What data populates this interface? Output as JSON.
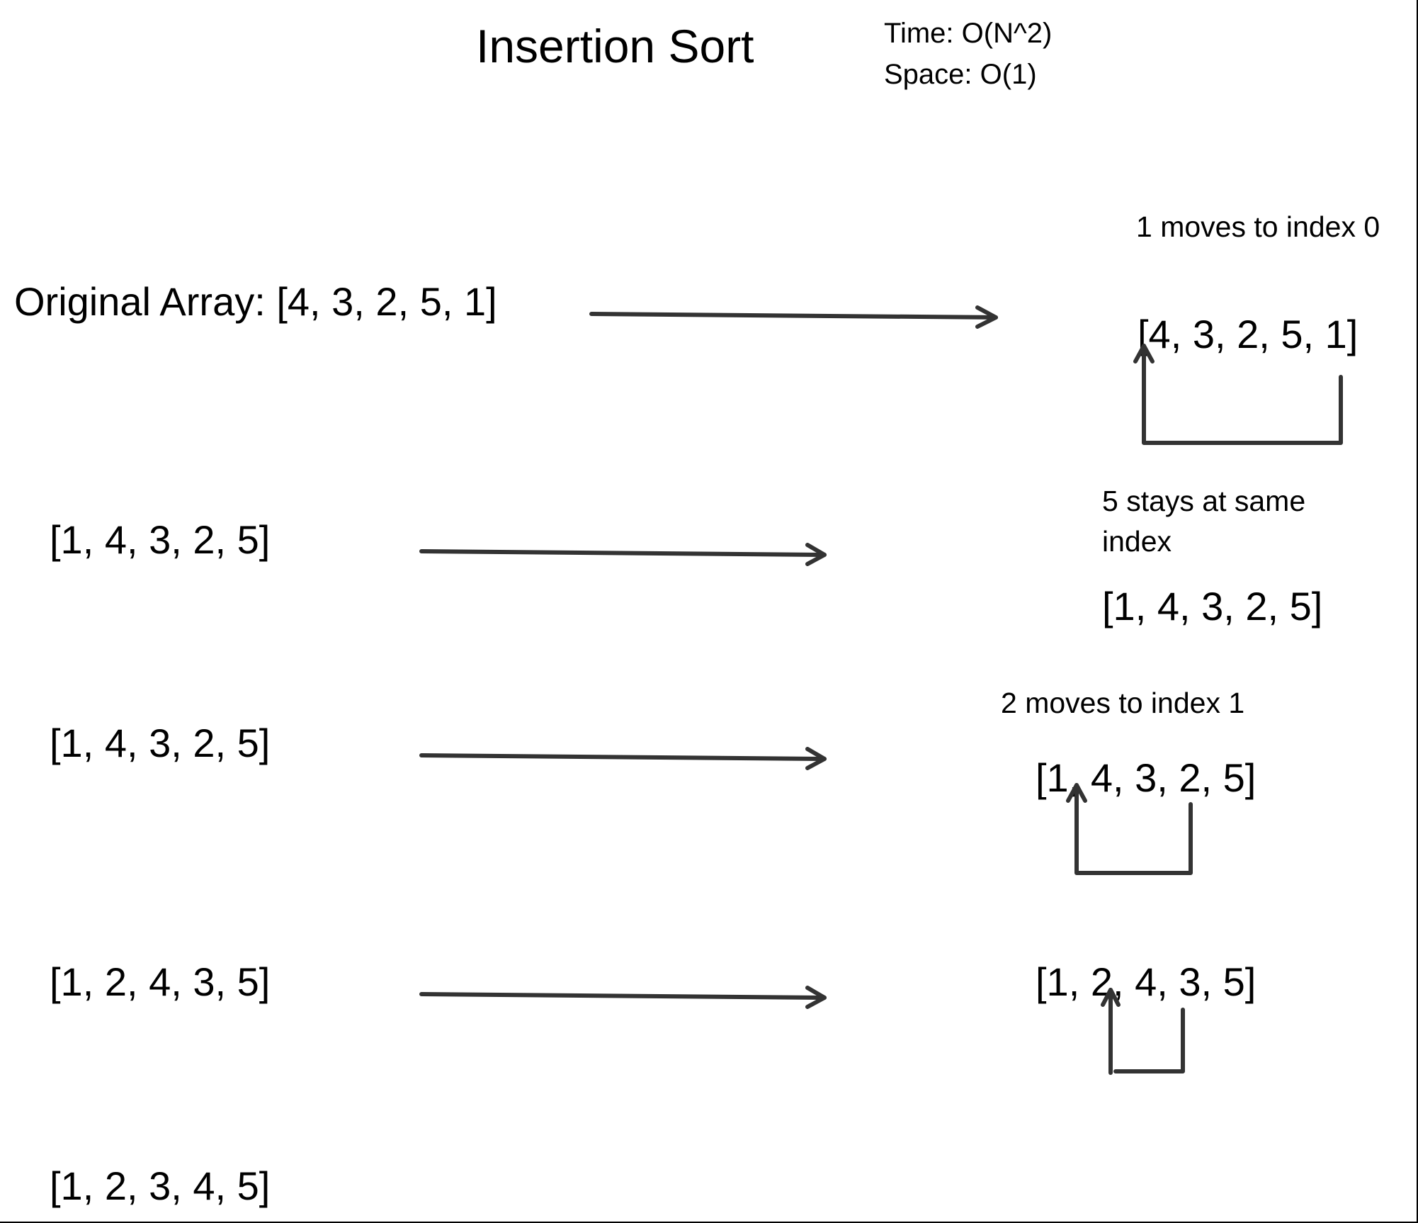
{
  "title": "Insertion Sort",
  "complexity": {
    "time": "Time: O(N^2)",
    "space": "Space: O(1)"
  },
  "left_column": {
    "original": "Original Array: [4, 3, 2, 5, 1]",
    "step1": "[1, 4, 3, 2, 5]",
    "step2": "[1, 4, 3, 2, 5]",
    "step3": "[1, 2, 4, 3, 5]",
    "final": "[1, 2, 3, 4, 5]"
  },
  "right_column": {
    "note1": "1 moves to index 0",
    "array1": "[4, 3, 2, 5, 1]",
    "note2": "5 stays at same index",
    "array2": "[1, 4, 3, 2, 5]",
    "note3": "2 moves to index 1",
    "array3": "[1, 4, 3, 2, 5]",
    "array4": "[1, 2, 4, 3, 5]"
  },
  "colors": {
    "stroke": "#333333",
    "text": "#000000",
    "background": "#ffffff"
  }
}
